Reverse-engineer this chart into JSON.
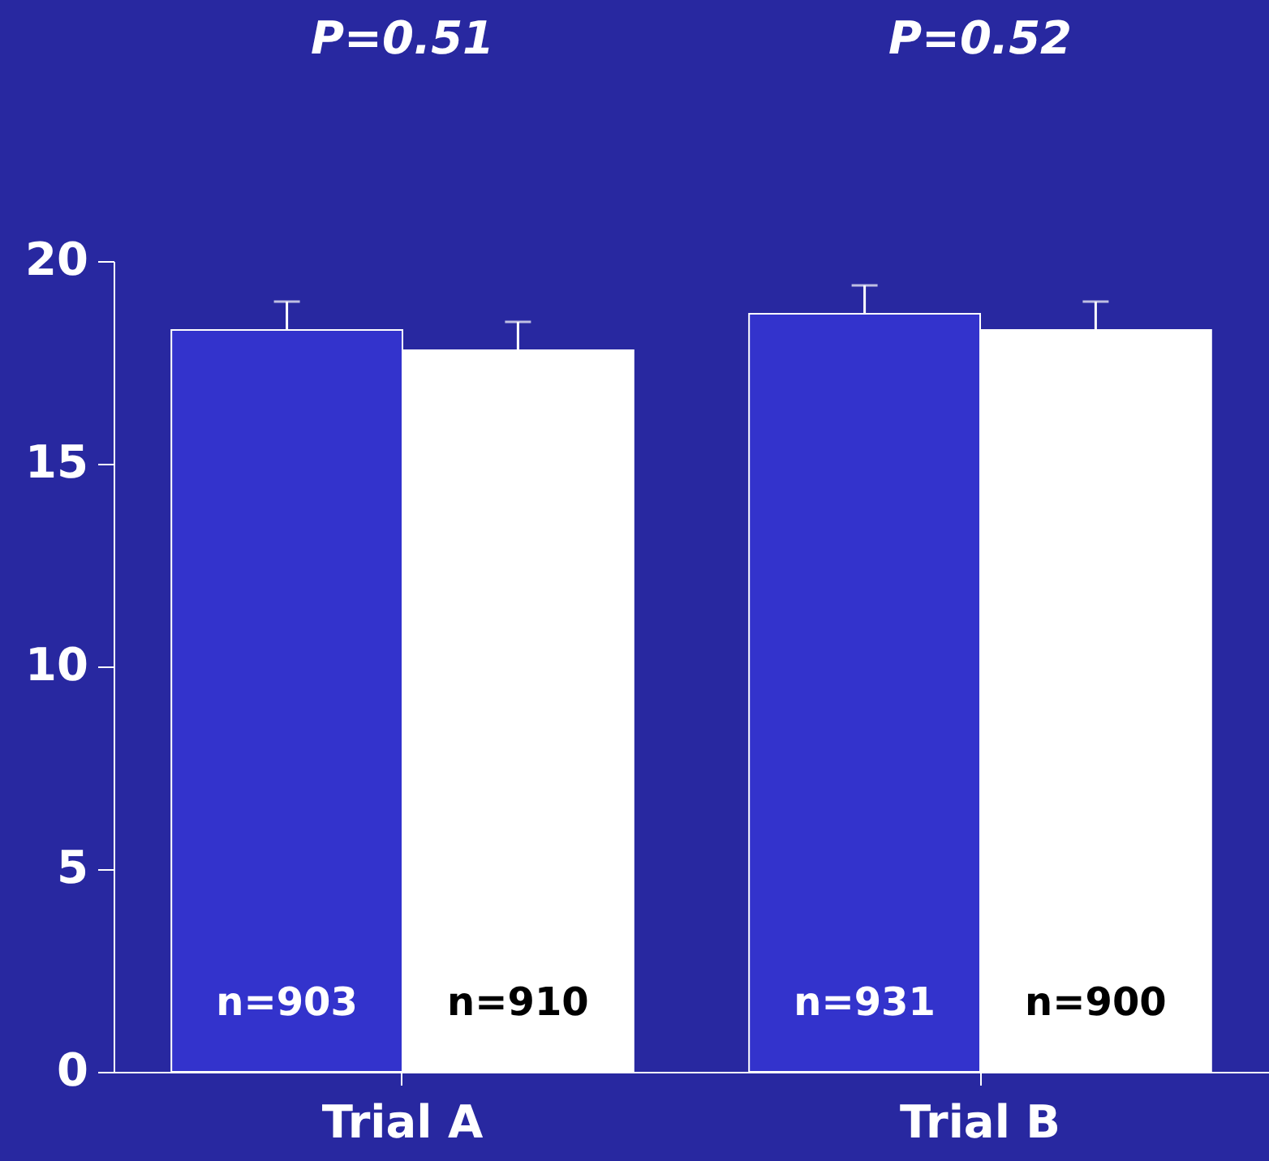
{
  "chart_data": {
    "type": "bar",
    "categories": [
      "Trial A",
      "Trial B"
    ],
    "series": [
      {
        "color": "#3333cc",
        "values": [
          18.3,
          18.7
        ],
        "errors": [
          0.7,
          0.7
        ]
      },
      {
        "color": "#ffffff",
        "values": [
          17.8,
          18.3
        ],
        "errors": [
          0.7,
          0.7
        ]
      }
    ],
    "ylim": [
      0,
      20
    ],
    "yticks": [
      0,
      5,
      10,
      15,
      20
    ],
    "grid": false,
    "legend": false,
    "annotations": [
      "P=0.51",
      "P=0.52",
      "n=903",
      "n=931",
      "n=910",
      "n=900"
    ]
  }
}
